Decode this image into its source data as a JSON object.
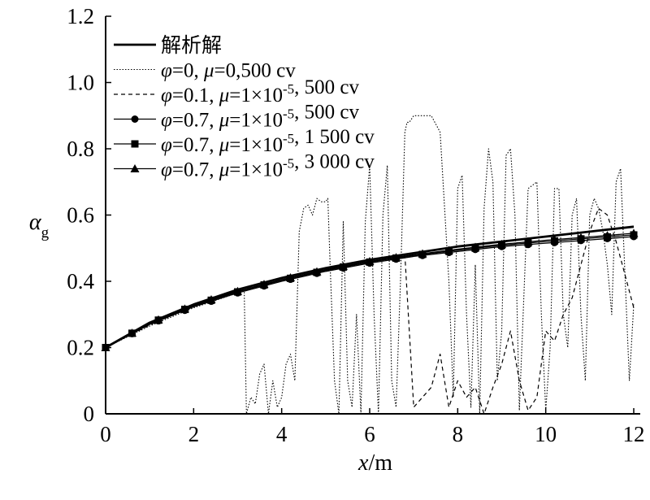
{
  "chart_data": {
    "type": "line",
    "xlabel": "x/m",
    "ylabel": "αg",
    "ylabel_main": "α",
    "ylabel_sub": "g",
    "xlabel_var": "x",
    "xlabel_unit": "/m",
    "xlim": [
      0,
      12
    ],
    "ylim": [
      0,
      1.2
    ],
    "xticks": [
      "0",
      "2",
      "4",
      "6",
      "8",
      "10",
      "12"
    ],
    "yticks": [
      "0",
      "0.2",
      "0.4",
      "0.6",
      "0.8",
      "1.0",
      "1.2"
    ],
    "grid": false,
    "legend_position": "top-left",
    "series": [
      {
        "name": "解析解",
        "legend_parts": [
          {
            "t": "解析解",
            "i": false
          }
        ],
        "style": "solid-thick",
        "marker": "none",
        "x": [
          0,
          1,
          2,
          3,
          4,
          5,
          6,
          7,
          8,
          9,
          10,
          11,
          12
        ],
        "y": [
          0.2,
          0.275,
          0.33,
          0.375,
          0.41,
          0.44,
          0.465,
          0.485,
          0.505,
          0.52,
          0.535,
          0.55,
          0.565
        ]
      },
      {
        "name": "φ=0, μ=0,500 cv",
        "legend_parts": [
          {
            "t": "φ",
            "i": true
          },
          {
            "t": "=0, ",
            "i": false
          },
          {
            "t": "μ",
            "i": true
          },
          {
            "t": "=0,500 cv",
            "i": false
          }
        ],
        "style": "dotted",
        "marker": "none",
        "x": [
          0,
          1,
          2,
          3,
          3.15,
          3.2,
          3.3,
          3.4,
          3.5,
          3.6,
          3.7,
          3.8,
          3.9,
          4.0,
          4.1,
          4.2,
          4.3,
          4.4,
          4.5,
          4.6,
          4.7,
          4.8,
          4.9,
          5.0,
          5.05,
          5.1,
          5.2,
          5.3,
          5.4,
          5.5,
          5.6,
          5.7,
          5.8,
          5.9,
          6.0,
          6.1,
          6.2,
          6.3,
          6.4,
          6.5,
          6.6,
          6.7,
          6.8,
          6.85,
          6.9,
          7.0,
          7.2,
          7.4,
          7.6,
          7.8,
          7.9,
          8.0,
          8.1,
          8.2,
          8.3,
          8.4,
          8.5,
          8.6,
          8.7,
          8.8,
          8.9,
          9.0,
          9.1,
          9.2,
          9.3,
          9.4,
          9.6,
          9.8,
          9.9,
          10.0,
          10.1,
          10.2,
          10.3,
          10.4,
          10.5,
          10.6,
          10.7,
          10.8,
          10.9,
          11.0,
          11.1,
          11.2,
          11.3,
          11.4,
          11.5,
          11.6,
          11.7,
          11.8,
          11.9,
          12.0
        ],
        "y": [
          0.2,
          0.265,
          0.32,
          0.365,
          0.37,
          0.0,
          0.05,
          0.03,
          0.12,
          0.15,
          0.0,
          0.1,
          0.02,
          0.05,
          0.15,
          0.18,
          0.1,
          0.55,
          0.62,
          0.63,
          0.6,
          0.65,
          0.64,
          0.64,
          0.65,
          0.45,
          0.1,
          0.0,
          0.58,
          0.1,
          0.02,
          0.3,
          0.0,
          0.58,
          0.75,
          0.3,
          0.0,
          0.6,
          0.75,
          0.1,
          0.02,
          0.4,
          0.85,
          0.88,
          0.88,
          0.9,
          0.9,
          0.9,
          0.85,
          0.4,
          0.05,
          0.68,
          0.72,
          0.3,
          0.02,
          0.45,
          0.0,
          0.62,
          0.8,
          0.7,
          0.1,
          0.25,
          0.78,
          0.8,
          0.6,
          0.01,
          0.68,
          0.7,
          0.3,
          0.01,
          0.2,
          0.68,
          0.68,
          0.3,
          0.2,
          0.6,
          0.65,
          0.3,
          0.1,
          0.6,
          0.65,
          0.62,
          0.55,
          0.45,
          0.3,
          0.7,
          0.74,
          0.42,
          0.1,
          0.33
        ]
      },
      {
        "name": "φ=0.1, μ=1×10-5, 500 cv",
        "legend_parts": [
          {
            "t": "φ",
            "i": true
          },
          {
            "t": "=0.1, ",
            "i": false
          },
          {
            "t": "μ",
            "i": true
          },
          {
            "t": "=1×10",
            "i": false
          },
          {
            "t": "-5",
            "i": false,
            "sup": true
          },
          {
            "t": ", 500 cv",
            "i": false
          }
        ],
        "style": "dashed",
        "marker": "none",
        "x": [
          0,
          1,
          2,
          3,
          4,
          5,
          6,
          6.5,
          6.8,
          7.0,
          7.2,
          7.4,
          7.6,
          7.8,
          8.0,
          8.2,
          8.4,
          8.6,
          8.8,
          9.0,
          9.2,
          9.4,
          9.6,
          9.8,
          10.0,
          10.2,
          10.4,
          10.6,
          10.8,
          11.0,
          11.2,
          11.4,
          11.6,
          11.8,
          12.0
        ],
        "y": [
          0.2,
          0.268,
          0.325,
          0.37,
          0.405,
          0.435,
          0.46,
          0.47,
          0.48,
          0.02,
          0.05,
          0.08,
          0.18,
          0.02,
          0.1,
          0.05,
          0.08,
          0.0,
          0.08,
          0.15,
          0.25,
          0.1,
          0.01,
          0.05,
          0.25,
          0.22,
          0.3,
          0.35,
          0.45,
          0.55,
          0.62,
          0.6,
          0.52,
          0.42,
          0.32
        ]
      },
      {
        "name": "φ=0.7, μ=1×10-5, 500 cv",
        "legend_parts": [
          {
            "t": "φ",
            "i": true
          },
          {
            "t": "=0.7, ",
            "i": false
          },
          {
            "t": "μ",
            "i": true
          },
          {
            "t": "=1×10",
            "i": false
          },
          {
            "t": "-5",
            "i": false,
            "sup": true
          },
          {
            "t": ", 500 cv",
            "i": false
          }
        ],
        "style": "solid",
        "marker": "circle",
        "x": [
          0,
          1,
          2,
          3,
          4,
          5,
          6,
          7,
          8,
          9,
          10,
          11,
          12
        ],
        "y": [
          0.2,
          0.27,
          0.323,
          0.365,
          0.4,
          0.43,
          0.455,
          0.475,
          0.49,
          0.505,
          0.515,
          0.525,
          0.535
        ]
      },
      {
        "name": "φ=0.7, μ=1×10-5, 1 500 cv",
        "legend_parts": [
          {
            "t": "φ",
            "i": true
          },
          {
            "t": "=0.7, ",
            "i": false
          },
          {
            "t": "μ",
            "i": true
          },
          {
            "t": "=1×10",
            "i": false
          },
          {
            "t": "-5",
            "i": false,
            "sup": true
          },
          {
            "t": ", 1 500 cv",
            "i": false
          }
        ],
        "style": "solid",
        "marker": "square",
        "x": [
          0,
          1,
          2,
          3,
          4,
          5,
          6,
          7,
          8,
          9,
          10,
          11,
          12
        ],
        "y": [
          0.2,
          0.272,
          0.326,
          0.368,
          0.403,
          0.433,
          0.458,
          0.478,
          0.494,
          0.509,
          0.52,
          0.53,
          0.54
        ]
      },
      {
        "name": "φ=0.7, μ=1×10-5, 3 000 cv",
        "legend_parts": [
          {
            "t": "φ",
            "i": true
          },
          {
            "t": "=0.7, ",
            "i": false
          },
          {
            "t": "μ",
            "i": true
          },
          {
            "t": "=1×10",
            "i": false
          },
          {
            "t": "-5",
            "i": false,
            "sup": true
          },
          {
            "t": ", 3 000 cv",
            "i": false
          }
        ],
        "style": "solid",
        "marker": "triangle",
        "x": [
          0,
          1,
          2,
          3,
          4,
          5,
          6,
          7,
          8,
          9,
          10,
          11,
          12
        ],
        "y": [
          0.2,
          0.273,
          0.328,
          0.37,
          0.405,
          0.435,
          0.46,
          0.48,
          0.497,
          0.512,
          0.524,
          0.534,
          0.545
        ]
      }
    ]
  }
}
